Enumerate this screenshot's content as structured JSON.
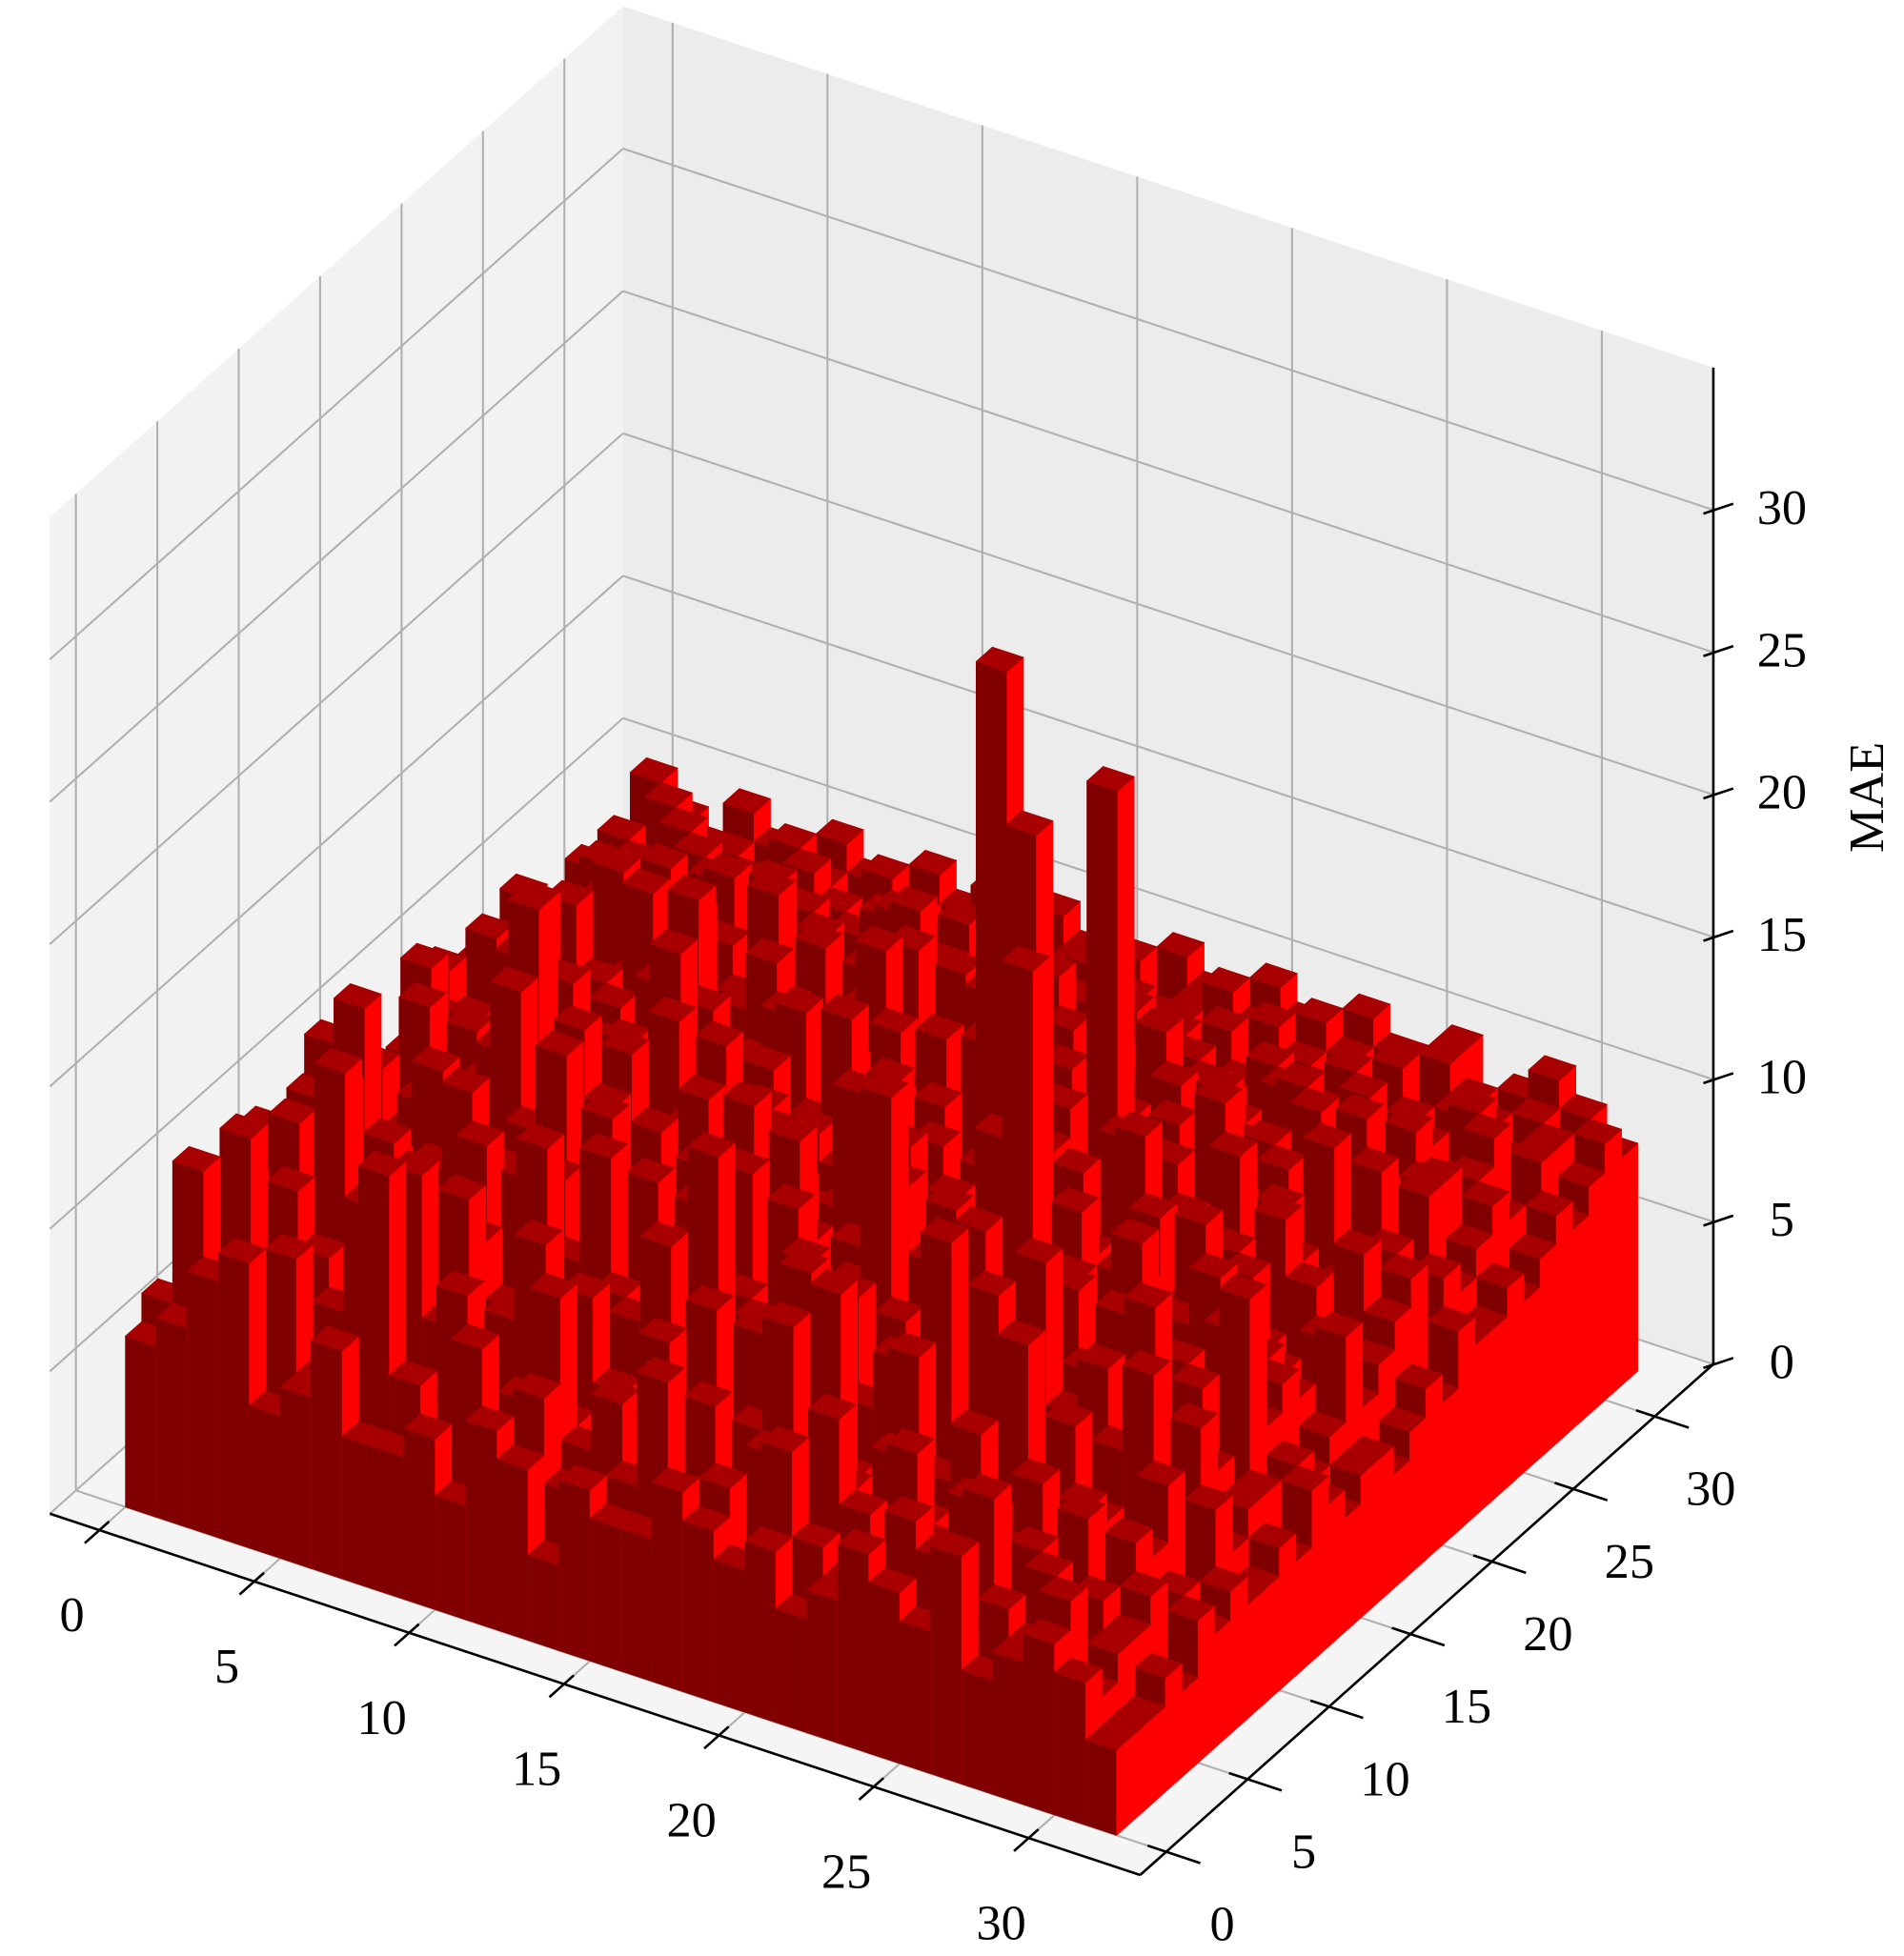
{
  "chart_data": {
    "type": "bar3d",
    "zlabel": "MAE",
    "x": [
      0,
      1,
      2,
      3,
      4,
      5,
      6,
      7,
      8,
      9,
      10,
      11,
      12,
      13,
      14,
      15,
      16,
      17,
      18,
      19,
      20,
      21,
      22,
      23,
      24,
      25,
      26,
      27,
      28,
      29,
      30,
      31
    ],
    "y": [
      0,
      1,
      2,
      3,
      4,
      5,
      6,
      7,
      8,
      9,
      10,
      11,
      12,
      13,
      14,
      15,
      16,
      17,
      18,
      19,
      20,
      21,
      22,
      23,
      24,
      25,
      26,
      27,
      28,
      29,
      30,
      31
    ],
    "values": [
      [
        6,
        7,
        9,
        10,
        5,
        6,
        8,
        5,
        5,
        6,
        4,
        7,
        6,
        3,
        6,
        5,
        5,
        7,
        6,
        5,
        6,
        4,
        5,
        7,
        6,
        5,
        8,
        4,
        5,
        6,
        5,
        3
      ],
      [
        7,
        12,
        8,
        4,
        10,
        6,
        5,
        14,
        7,
        5,
        9,
        6,
        8,
        5,
        4,
        6,
        10,
        5,
        7,
        4,
        9,
        6,
        5,
        3,
        8,
        7,
        4,
        6,
        5,
        7,
        4,
        3
      ],
      [
        4,
        9,
        13,
        7,
        5,
        8,
        12,
        6,
        4,
        10,
        5,
        7,
        11,
        6,
        8,
        4,
        5,
        9,
        6,
        8,
        5,
        10,
        7,
        4,
        6,
        5,
        9,
        3,
        7,
        4,
        5,
        3
      ],
      [
        8,
        5,
        6,
        11,
        9,
        4,
        7,
        13,
        8,
        5,
        9,
        12,
        6,
        4,
        7,
        10,
        6,
        5,
        8,
        12,
        5,
        7,
        4,
        9,
        6,
        8,
        5,
        7,
        4,
        6,
        5,
        4
      ],
      [
        5,
        10,
        7,
        6,
        15,
        8,
        5,
        9,
        12,
        6,
        4,
        8,
        10,
        7,
        5,
        9,
        11,
        6,
        4,
        7,
        13,
        5,
        8,
        6,
        4,
        7,
        6,
        5,
        8,
        4,
        6,
        3
      ],
      [
        9,
        6,
        12,
        8,
        5,
        11,
        7,
        4,
        10,
        8,
        14,
        6,
        5,
        9,
        12,
        6,
        8,
        10,
        5,
        9,
        6,
        4,
        11,
        7,
        9,
        5,
        8,
        4,
        6,
        7,
        4,
        5
      ],
      [
        4,
        8,
        5,
        13,
        7,
        6,
        10,
        9,
        5,
        12,
        7,
        5,
        9,
        8,
        6,
        15,
        7,
        4,
        12,
        6,
        8,
        10,
        5,
        6,
        8,
        12,
        4,
        7,
        5,
        6,
        5,
        4
      ],
      [
        10,
        5,
        9,
        6,
        11,
        4,
        8,
        12,
        7,
        6,
        9,
        13,
        6,
        5,
        10,
        7,
        9,
        8,
        6,
        11,
        5,
        7,
        14,
        6,
        5,
        7,
        9,
        6,
        4,
        8,
        3,
        5
      ],
      [
        6,
        11,
        7,
        5,
        8,
        10,
        13,
        5,
        9,
        11,
        6,
        8,
        12,
        10,
        7,
        9,
        5,
        11,
        7,
        6,
        10,
        8,
        6,
        12,
        7,
        5,
        6,
        8,
        11,
        5,
        7,
        4
      ],
      [
        7,
        6,
        14,
        9,
        6,
        5,
        9,
        10,
        6,
        7,
        13,
        5,
        8,
        11,
        6,
        8,
        12,
        6,
        10,
        17,
        6,
        9,
        7,
        5,
        13,
        8,
        10,
        5,
        6,
        9,
        5,
        4
      ],
      [
        5,
        9,
        6,
        8,
        12,
        7,
        6,
        11,
        14,
        5,
        8,
        10,
        6,
        7,
        12,
        5,
        9,
        7,
        6,
        8,
        11,
        6,
        10,
        8,
        6,
        9,
        7,
        12,
        5,
        7,
        6,
        5
      ],
      [
        11,
        7,
        5,
        10,
        6,
        9,
        15,
        7,
        6,
        12,
        5,
        9,
        11,
        6,
        8,
        13,
        7,
        10,
        5,
        9,
        7,
        12,
        6,
        9,
        11,
        5,
        8,
        6,
        9,
        5,
        6,
        4
      ],
      [
        6,
        10,
        8,
        5,
        9,
        12,
        7,
        6,
        10,
        8,
        11,
        6,
        7,
        13,
        5,
        9,
        6,
        8,
        12,
        7,
        10,
        6,
        21,
        5,
        8,
        10,
        6,
        9,
        7,
        12,
        5,
        6
      ],
      [
        9,
        5,
        12,
        7,
        10,
        6,
        8,
        13,
        5,
        9,
        7,
        12,
        6,
        8,
        10,
        6,
        14,
        5,
        9,
        11,
        6,
        8,
        7,
        10,
        5,
        12,
        8,
        6,
        10,
        7,
        6,
        5
      ],
      [
        5,
        8,
        6,
        11,
        7,
        16,
        5,
        9,
        12,
        6,
        10,
        8,
        5,
        11,
        7,
        9,
        6,
        12,
        7,
        5,
        9,
        13,
        6,
        8,
        10,
        6,
        9,
        11,
        6,
        8,
        5,
        4
      ],
      [
        7,
        12,
        9,
        6,
        8,
        5,
        10,
        7,
        6,
        13,
        5,
        9,
        11,
        7,
        8,
        12,
        6,
        9,
        10,
        6,
        8,
        5,
        11,
        7,
        9,
        6,
        12,
        5,
        8,
        7,
        6,
        5
      ],
      [
        8,
        6,
        10,
        7,
        13,
        9,
        6,
        11,
        8,
        5,
        12,
        7,
        6,
        10,
        9,
        5,
        8,
        11,
        6,
        12,
        23,
        7,
        9,
        6,
        11,
        8,
        5,
        10,
        7,
        6,
        9,
        5
      ],
      [
        5,
        9,
        7,
        12,
        6,
        8,
        10,
        5,
        14,
        9,
        6,
        11,
        8,
        7,
        5,
        12,
        9,
        6,
        10,
        8,
        6,
        11,
        7,
        13,
        6,
        9,
        10,
        7,
        5,
        8,
        6,
        4
      ],
      [
        10,
        6,
        8,
        5,
        11,
        7,
        9,
        12,
        6,
        8,
        10,
        5,
        9,
        13,
        7,
        6,
        11,
        8,
        27,
        6,
        9,
        7,
        12,
        5,
        10,
        6,
        8,
        11,
        9,
        6,
        7,
        5
      ],
      [
        6,
        11,
        5,
        9,
        7,
        10,
        6,
        8,
        11,
        7,
        5,
        12,
        6,
        9,
        10,
        8,
        5,
        13,
        7,
        10,
        6,
        9,
        8,
        11,
        7,
        12,
        6,
        9,
        5,
        10,
        8,
        6
      ],
      [
        9,
        7,
        12,
        6,
        10,
        5,
        8,
        14,
        7,
        9,
        11,
        6,
        10,
        7,
        5,
        12,
        9,
        6,
        8,
        11,
        7,
        10,
        6,
        9,
        13,
        7,
        10,
        6,
        8,
        6,
        9,
        5
      ],
      [
        7,
        10,
        6,
        8,
        5,
        13,
        9,
        6,
        10,
        12,
        7,
        8,
        6,
        11,
        9,
        7,
        10,
        12,
        6,
        8,
        22,
        6,
        11,
        7,
        9,
        6,
        8,
        12,
        7,
        9,
        6,
        7
      ],
      [
        5,
        8,
        11,
        7,
        9,
        6,
        12,
        8,
        5,
        10,
        9,
        6,
        13,
        7,
        10,
        8,
        6,
        9,
        11,
        7,
        10,
        8,
        6,
        12,
        9,
        10,
        7,
        8,
        11,
        6,
        8,
        6
      ],
      [
        10,
        6,
        7,
        12,
        8,
        11,
        5,
        9,
        13,
        6,
        8,
        10,
        7,
        9,
        6,
        12,
        8,
        10,
        7,
        9,
        6,
        11,
        8,
        7,
        10,
        9,
        6,
        12,
        8,
        10,
        7,
        6
      ],
      [
        6,
        9,
        10,
        5,
        12,
        7,
        10,
        6,
        8,
        11,
        6,
        9,
        12,
        8,
        7,
        10,
        6,
        11,
        9,
        7,
        12,
        8,
        10,
        9,
        7,
        11,
        8,
        9,
        6,
        10,
        8,
        7
      ],
      [
        8,
        7,
        6,
        10,
        7,
        9,
        8,
        12,
        6,
        9,
        10,
        7,
        8,
        11,
        9,
        6,
        12,
        8,
        10,
        9,
        7,
        10,
        9,
        8,
        11,
        7,
        10,
        8,
        9,
        7,
        9,
        6
      ],
      [
        7,
        10,
        8,
        6,
        9,
        11,
        7,
        8,
        10,
        7,
        9,
        12,
        8,
        7,
        10,
        9,
        8,
        7,
        11,
        8,
        10,
        9,
        7,
        10,
        8,
        9,
        8,
        10,
        7,
        9,
        8,
        7
      ],
      [
        9,
        6,
        9,
        8,
        10,
        7,
        9,
        10,
        7,
        8,
        11,
        8,
        9,
        10,
        7,
        9,
        10,
        8,
        7,
        10,
        8,
        9,
        10,
        8,
        9,
        10,
        7,
        9,
        8,
        10,
        7,
        8
      ],
      [
        8,
        9,
        7,
        10,
        8,
        9,
        7,
        8,
        9,
        10,
        8,
        9,
        7,
        8,
        10,
        8,
        9,
        10,
        8,
        9,
        10,
        7,
        8,
        9,
        10,
        8,
        9,
        8,
        10,
        8,
        9,
        7
      ],
      [
        9,
        8,
        10,
        7,
        9,
        8,
        10,
        9,
        8,
        7,
        9,
        10,
        8,
        9,
        8,
        10,
        8,
        9,
        9,
        8,
        9,
        10,
        9,
        8,
        9,
        10,
        8,
        9,
        9,
        8,
        9,
        8
      ],
      [
        8,
        10,
        9,
        9,
        8,
        10,
        9,
        8,
        10,
        9,
        8,
        9,
        10,
        8,
        9,
        9,
        10,
        8,
        9,
        10,
        9,
        8,
        10,
        9,
        8,
        9,
        10,
        9,
        8,
        9,
        8,
        9
      ],
      [
        10,
        9,
        8,
        10,
        9,
        9,
        10,
        9,
        8,
        10,
        9,
        10,
        9,
        10,
        9,
        8,
        9,
        10,
        9,
        9,
        10,
        9,
        9,
        10,
        9,
        9,
        10,
        8,
        9,
        10,
        9,
        8
      ]
    ],
    "colors": {
      "front": "#800000",
      "side": "#ff0000",
      "top": "#a80000"
    },
    "xlim": [
      -1.6,
      33.6
    ],
    "ylim": [
      -1.6,
      33.6
    ],
    "zlim": [
      0,
      35
    ],
    "xticks": [
      0,
      5,
      10,
      15,
      20,
      25,
      30
    ],
    "yticks": [
      0,
      5,
      10,
      15,
      20,
      25,
      30
    ],
    "zticks": [
      0,
      5,
      10,
      15,
      20,
      25,
      30
    ],
    "grid": true
  }
}
